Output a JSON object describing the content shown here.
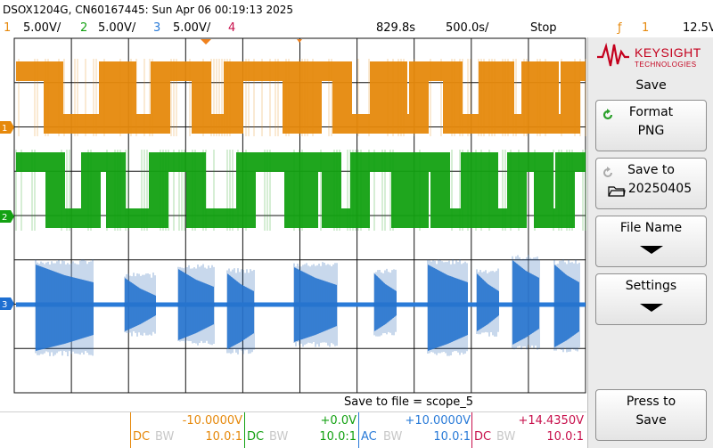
{
  "title": "DSOX1204G, CN60167445: Sun Apr 06 00:19:13 2025",
  "channels": [
    {
      "num": "1",
      "scale": "5.00V/",
      "color": "#e6890c",
      "offset": "-10.0000V",
      "coupling": "DC",
      "bw": "BW",
      "probe": "10.0:1"
    },
    {
      "num": "2",
      "scale": "5.00V/",
      "color": "#13a112",
      "offset": "+0.0V",
      "coupling": "DC",
      "bw": "BW",
      "probe": "10.0:1"
    },
    {
      "num": "3",
      "scale": "5.00V/",
      "color": "#2a7bd8",
      "offset": "+10.0000V",
      "coupling": "AC",
      "bw": "BW",
      "probe": "10.0:1"
    },
    {
      "num": "4",
      "scale": "",
      "color": "#c8104c",
      "offset": "+14.4350V",
      "coupling": "DC",
      "bw": "BW",
      "probe": "10.0:1"
    }
  ],
  "timebase": {
    "position": "829.8s",
    "scale": "500.0s/"
  },
  "run_state": "Stop",
  "trigger": {
    "icon": "rising-edge-icon",
    "source": "1",
    "level": "12.5V"
  },
  "status_message": "Save to file = scope_5",
  "panel": {
    "brand": "KEYSIGHT",
    "brand_sub": "TECHNOLOGIES",
    "menu_title": "Save",
    "softkeys": [
      {
        "label": "Format",
        "value": "PNG"
      },
      {
        "label": "Save to",
        "value": "20250405"
      },
      {
        "label": "File Name",
        "value": ""
      },
      {
        "label": "Settings",
        "value": ""
      },
      {
        "label": "Press to",
        "value": "Save"
      }
    ]
  },
  "colors": {
    "grid": "#111111",
    "ground_marker": "#1e6fd1",
    "trigger_marker": "#f0821e"
  }
}
